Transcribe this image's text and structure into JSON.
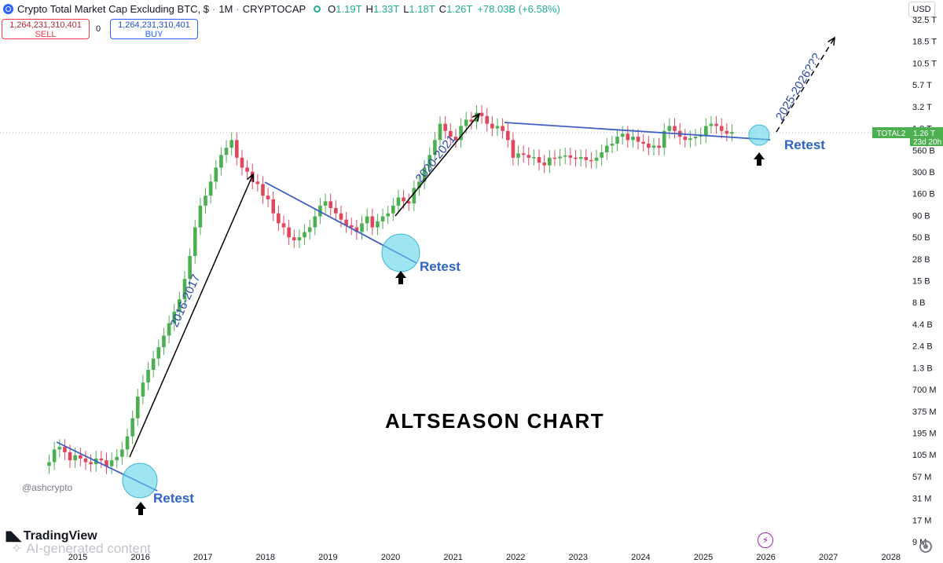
{
  "header": {
    "title": "Crypto Total Market Cap Excluding BTC, $",
    "interval": "1M",
    "exchange": "CRYPTOCAP",
    "ohlc": [
      {
        "key": "O",
        "value": "1.19T"
      },
      {
        "key": "H",
        "value": "1.33T"
      },
      {
        "key": "L",
        "value": "1.18T"
      },
      {
        "key": "C",
        "value": "1.26T"
      }
    ],
    "change": "+78.03B (+6.58%)"
  },
  "trade": {
    "sell_price": "1,264,231,310,401",
    "sell_label": "SELL",
    "spread": "0",
    "buy_price": "1,264,231,310,401",
    "buy_label": "BUY"
  },
  "currency": "USD",
  "branding": {
    "tv_logo": "TradingView",
    "ai_note": "AI-generated content",
    "watermark": "@ashcrypto"
  },
  "annotations": {
    "main_title": "ALTSEASON CHART",
    "cycle_labels": [
      "2016-2017",
      "2020-2021",
      "2025-2026???"
    ],
    "retest_label": "Retest"
  },
  "price_tag": {
    "symbol": "TOTAL2",
    "value": "1.26 T",
    "countdown": "23d 20h"
  },
  "colors": {
    "up": "#4caf50",
    "down": "#e0475d",
    "trendline": "#3d5fc4",
    "retest_circle": "#5fd3e8",
    "retest_text": "#2e63c7",
    "price_tag": "#4caf50"
  },
  "icons": [
    "tradingview-logo-icon",
    "up-arrow-icon",
    "bolt-icon",
    "settings-icon",
    "live-status-icon"
  ],
  "chart_data": {
    "type": "candlestick",
    "scale": "log",
    "x_ticks": [
      "2015",
      "2016",
      "2017",
      "2018",
      "2019",
      "2020",
      "2021",
      "2022",
      "2023",
      "2024",
      "2025",
      "2026",
      "2027",
      "2028"
    ],
    "y_ticks": [
      "32.5 T",
      "18.5 T",
      "10.5 T",
      "5.7 T",
      "3.2 T",
      "1.8 T",
      "560 B",
      "300 B",
      "160 B",
      "90 B",
      "50 B",
      "28 B",
      "15 B",
      "8 B",
      "4.4 B",
      "2.4 B",
      "1.3 B",
      "700 M",
      "375 M",
      "195 M",
      "105 M",
      "57 M",
      "31 M",
      "17 M",
      "9 M"
    ],
    "last_value": "1.26 T",
    "series": [
      {
        "period": "2015",
        "values": [
          90,
          130,
          140,
          120,
          95,
          110,
          100,
          90,
          85,
          100,
          95,
          80
        ]
      },
      {
        "period": "2016",
        "values": [
          95,
          105,
          130,
          190,
          320,
          600,
          900,
          1300,
          1800,
          2500,
          3500,
          5000
        ]
      },
      {
        "period": "2017",
        "values": [
          7000,
          10000,
          18000,
          35000,
          80000,
          150000,
          200000,
          300000,
          450000,
          650000,
          800000,
          1000000
        ]
      },
      {
        "period": "2018",
        "values": [
          600000,
          450000,
          400000,
          300000,
          280000,
          200000,
          180000,
          120000,
          90000,
          80000,
          60000,
          55000
        ]
      },
      {
        "period": "2019",
        "values": [
          60000,
          70000,
          80000,
          110000,
          150000,
          170000,
          140000,
          120000,
          100000,
          85000,
          80000,
          70000
        ]
      },
      {
        "period": "2020",
        "values": [
          90000,
          110000,
          80000,
          95000,
          110000,
          120000,
          150000,
          190000,
          170000,
          160000,
          250000,
          300000
        ]
      },
      {
        "period": "2021",
        "values": [
          450000,
          650000,
          1000000,
          1600000,
          1300000,
          1100000,
          1000000,
          1500000,
          1800000,
          1700000,
          2200000,
          2000000
        ]
      },
      {
        "period": "2022",
        "values": [
          1600000,
          1400000,
          1500000,
          1300000,
          1000000,
          600000,
          680000,
          650000,
          600000,
          610000,
          520000,
          480000
        ]
      },
      {
        "period": "2023",
        "values": [
          600000,
          590000,
          620000,
          640000,
          600000,
          580000,
          610000,
          560000,
          550000,
          600000,
          700000,
          850000
        ]
      },
      {
        "period": "2024",
        "values": [
          900000,
          1100000,
          1200000,
          1000000,
          1100000,
          950000,
          900000,
          800000,
          850000,
          800000,
          1300000,
          1500000
        ]
      },
      {
        "period": "2025",
        "values": [
          1300000,
          1100000,
          1000000,
          1050000,
          1100000,
          1150000,
          1500000,
          1600000,
          1500000,
          1300000,
          1200000,
          1260000
        ]
      }
    ],
    "series_units": "millions USD"
  }
}
